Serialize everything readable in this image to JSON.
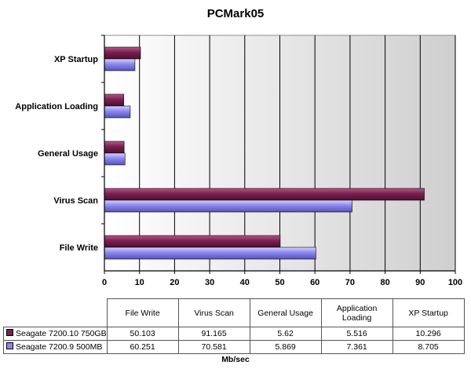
{
  "chart_data": {
    "type": "bar",
    "orientation": "horizontal",
    "title": "PCMark05",
    "xlabel": "Mb/sec",
    "ylabel": "",
    "xlim": [
      0,
      100
    ],
    "x_ticks": [
      "0",
      "10",
      "20",
      "30",
      "40",
      "50",
      "60",
      "70",
      "80",
      "90",
      "100"
    ],
    "categories": [
      "File Write",
      "Virus Scan",
      "General Usage",
      "Application Loading",
      "XP Startup"
    ],
    "category_labels_on_axis": [
      "File Write",
      "Virus Scan",
      "General Usage",
      "Application Loading",
      "XP Startup"
    ],
    "table_headers": [
      "File Write",
      "Virus Scan",
      "General Usage",
      "Application\nLoading",
      "XP Startup"
    ],
    "series": [
      {
        "name": "Seagate 7200.10 750GB",
        "color": "#7a2050",
        "values": [
          50.103,
          91.165,
          5.62,
          5.516,
          10.296
        ],
        "labels": [
          "50.103",
          "91.165",
          "5.62",
          "5.516",
          "10.296"
        ]
      },
      {
        "name": "Seagate 7200.9 500MB",
        "color": "#8a87ee",
        "values": [
          60.251,
          70.581,
          5.869,
          7.361,
          8.705
        ],
        "labels": [
          "60.251",
          "70.581",
          "5.869",
          "7.361",
          "8.705"
        ]
      }
    ],
    "grid": true,
    "legend": "data-table"
  }
}
